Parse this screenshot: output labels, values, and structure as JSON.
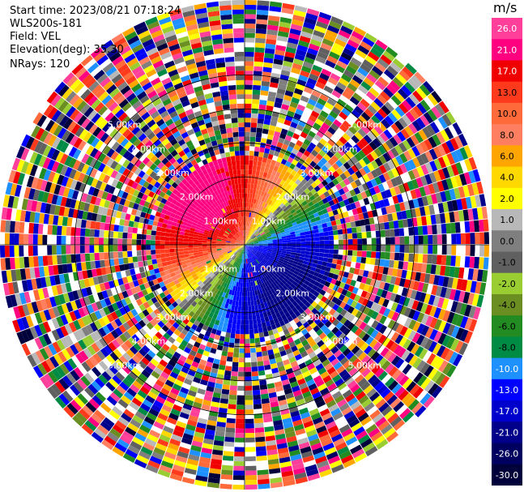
{
  "header": {
    "start_time": "Start time: 2023/08/21 07:18:24",
    "instrument": "WLS200s-181",
    "field": "Field: VEL",
    "elevation": "Elevation(deg): 35.30",
    "nrays": "NRays: 120"
  },
  "chart_data": {
    "type": "heatmap",
    "projection": "polar-ppi",
    "nrays": 120,
    "range_rings_km": [
      1.0,
      2.0,
      3.0,
      4.0,
      5.0
    ],
    "ring_label": "km",
    "max_range_km": 7.2,
    "colorbar": {
      "unit": "m/s",
      "levels": [
        {
          "label": "26.0",
          "color": "#ff3f9a"
        },
        {
          "label": "21.0",
          "color": "#ff0080"
        },
        {
          "label": "17.0",
          "color": "#f00000"
        },
        {
          "label": "13.0",
          "color": "#ff3a1c"
        },
        {
          "label": "10.0",
          "color": "#ff6a3a"
        },
        {
          "label": "8.0",
          "color": "#ff7f60"
        },
        {
          "label": "6.0",
          "color": "#ffa500"
        },
        {
          "label": "4.0",
          "color": "#ffd800"
        },
        {
          "label": "2.0",
          "color": "#ffff00"
        },
        {
          "label": "1.0",
          "color": "#b8b8b8"
        },
        {
          "label": "0.0",
          "color": "#7f7f7f"
        },
        {
          "label": "-1.0",
          "color": "#606060"
        },
        {
          "label": "-2.0",
          "color": "#9acd32"
        },
        {
          "label": "-4.0",
          "color": "#6b8e23"
        },
        {
          "label": "-6.0",
          "color": "#228b22"
        },
        {
          "label": "-8.0",
          "color": "#008b45"
        },
        {
          "label": "-10.0",
          "color": "#1e90ff"
        },
        {
          "label": "-13.0",
          "color": "#0000ff"
        },
        {
          "label": "-17.0",
          "color": "#0000cd"
        },
        {
          "label": "-21.0",
          "color": "#00008b"
        },
        {
          "label": "-26.0",
          "color": "#000060"
        },
        {
          "label": "-30.0",
          "color": "#00003a"
        }
      ]
    },
    "signal_region_km": 2.6,
    "pattern": "positive (red/pink) velocities toward NW-N, negative (blue) toward S-E, zero line along SW-NE; noise beyond ~2.6 km"
  }
}
